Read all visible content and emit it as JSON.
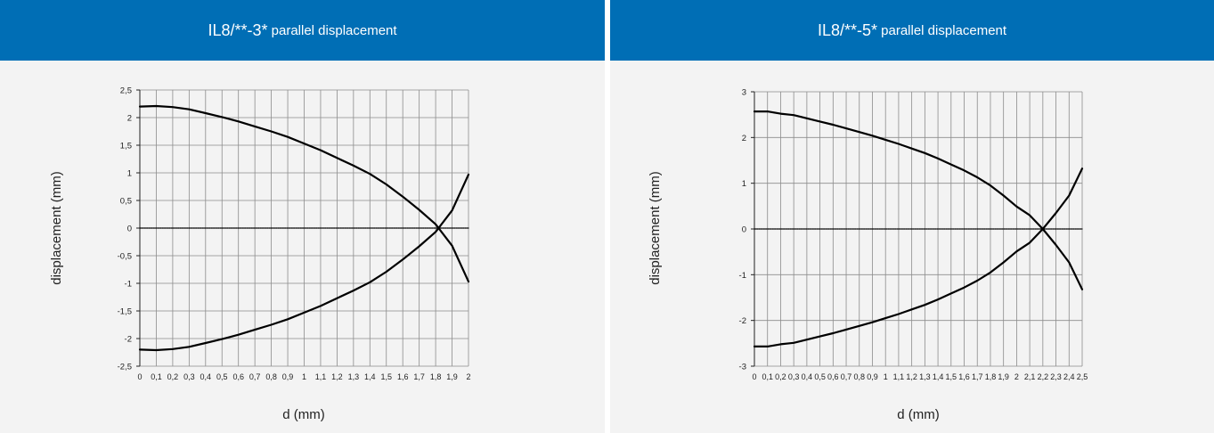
{
  "panels": [
    {
      "title_main": "IL8/**-3*",
      "title_sub": " parallel displacement"
    },
    {
      "title_main": "IL8/**-5*",
      "title_sub": " parallel displacement"
    }
  ],
  "colors": {
    "header": "#006eb5",
    "background": "#f3f3f3",
    "curve": "#000000",
    "grid": "#8c8c8c"
  },
  "chart_data": [
    {
      "type": "line",
      "xlabel": "d (mm)",
      "ylabel": "displacement (mm)",
      "xlim": [
        0,
        2
      ],
      "ylim": [
        -2.5,
        2.5
      ],
      "grid": true,
      "x_tick_labels": [
        "0",
        "0,1",
        "0,2",
        "0,3",
        "0,4",
        "0,5",
        "0,6",
        "0,7",
        "0,8",
        "0,9",
        "1",
        "1,1",
        "1,2",
        "1,3",
        "1,4",
        "1,5",
        "1,6",
        "1,7",
        "1,8",
        "1,9",
        "2"
      ],
      "y_ticks": [
        2.5,
        2,
        1.5,
        1,
        0.5,
        0,
        -0.5,
        -1,
        -1.5,
        -2,
        -2.5
      ],
      "y_tick_labels": [
        "2,5",
        "2",
        "1,5",
        "1",
        "0,5",
        "0",
        "-0,5",
        "-1",
        "-1,5",
        "-2",
        "-2,5"
      ],
      "x": [
        0,
        0.1,
        0.2,
        0.3,
        0.4,
        0.5,
        0.6,
        0.7,
        0.8,
        0.9,
        1.0,
        1.1,
        1.2,
        1.3,
        1.4,
        1.5,
        1.6,
        1.7,
        1.8,
        1.9,
        2.0
      ],
      "series": [
        {
          "values": [
            2.2,
            2.21,
            2.19,
            2.15,
            2.08,
            2.01,
            1.93,
            1.84,
            1.75,
            1.65,
            1.53,
            1.41,
            1.27,
            1.13,
            0.98,
            0.79,
            0.57,
            0.33,
            0.07,
            -0.32,
            -0.97
          ]
        },
        {
          "values": [
            -2.2,
            -2.21,
            -2.19,
            -2.15,
            -2.08,
            -2.01,
            -1.93,
            -1.84,
            -1.75,
            -1.65,
            -1.53,
            -1.41,
            -1.27,
            -1.13,
            -0.98,
            -0.79,
            -0.57,
            -0.33,
            -0.07,
            0.32,
            0.97
          ]
        },
        {
          "values": [
            0,
            0,
            0,
            0,
            0,
            0,
            0,
            0,
            0,
            0,
            0,
            0,
            0,
            0,
            0,
            0,
            0,
            0,
            0,
            0,
            0
          ]
        }
      ]
    },
    {
      "type": "line",
      "xlabel": "d (mm)",
      "ylabel": "displacement (mm)",
      "xlim": [
        0,
        2.5
      ],
      "ylim": [
        -3,
        3
      ],
      "grid": true,
      "x_tick_labels": [
        "0",
        "0,1",
        "0,2",
        "0,3",
        "0,4",
        "0,5",
        "0,6",
        "0,7",
        "0,8",
        "0,9",
        "1",
        "1,1",
        "1,2",
        "1,3",
        "1,4",
        "1,5",
        "1,6",
        "1,7",
        "1,8",
        "1,9",
        "2",
        "2,1",
        "2,2",
        "2,3",
        "2,4",
        "2,5"
      ],
      "y_ticks": [
        3,
        2,
        1,
        0,
        -1,
        -2,
        -3
      ],
      "y_tick_labels": [
        "3",
        "2",
        "1",
        "0",
        "-1",
        "-2",
        "-3"
      ],
      "x": [
        0,
        0.1,
        0.2,
        0.3,
        0.4,
        0.5,
        0.6,
        0.7,
        0.8,
        0.9,
        1.0,
        1.1,
        1.2,
        1.3,
        1.4,
        1.5,
        1.6,
        1.7,
        1.8,
        1.9,
        2.0,
        2.1,
        2.2,
        2.3,
        2.4,
        2.5
      ],
      "series": [
        {
          "values": [
            2.57,
            2.57,
            2.52,
            2.49,
            2.42,
            2.35,
            2.28,
            2.2,
            2.12,
            2.04,
            1.95,
            1.86,
            1.76,
            1.66,
            1.54,
            1.41,
            1.28,
            1.13,
            0.95,
            0.73,
            0.49,
            0.3,
            0.0,
            -0.35,
            -0.73,
            -1.32
          ]
        },
        {
          "values": [
            -2.57,
            -2.57,
            -2.52,
            -2.49,
            -2.42,
            -2.35,
            -2.28,
            -2.2,
            -2.12,
            -2.04,
            -1.95,
            -1.86,
            -1.76,
            -1.66,
            -1.54,
            -1.41,
            -1.28,
            -1.13,
            -0.95,
            -0.73,
            -0.49,
            -0.3,
            0.0,
            0.35,
            0.73,
            1.32
          ]
        },
        {
          "values": [
            0,
            0,
            0,
            0,
            0,
            0,
            0,
            0,
            0,
            0,
            0,
            0,
            0,
            0,
            0,
            0,
            0,
            0,
            0,
            0,
            0,
            0,
            0,
            0,
            0,
            0
          ]
        }
      ]
    }
  ]
}
